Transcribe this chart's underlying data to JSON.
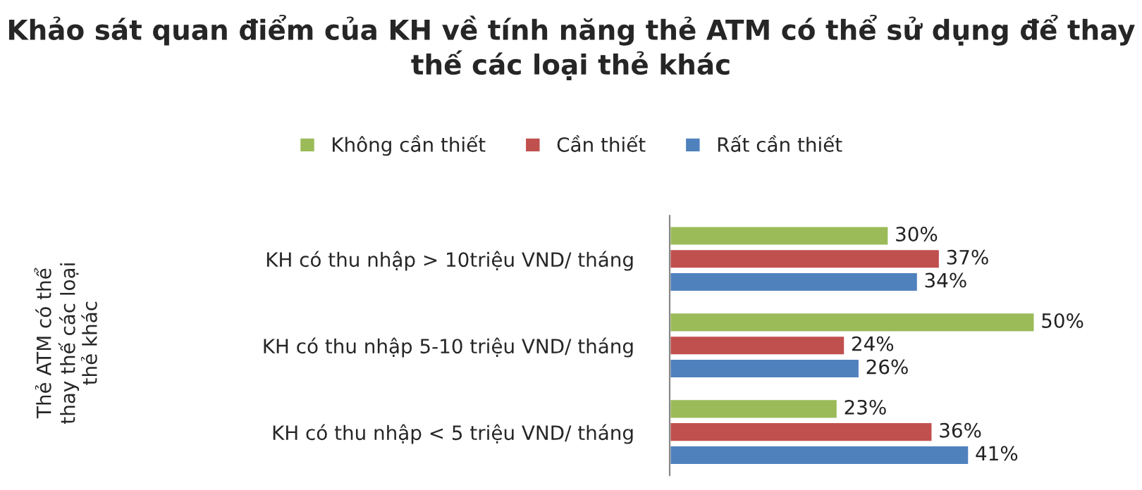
{
  "chart_data": {
    "type": "bar",
    "orientation": "horizontal",
    "title": "Khảo sát quan điểm của KH về tính năng thẻ ATM có thể sử dụng để thay thế các loại thẻ khác",
    "annotations": [
      "Thẻ ATM có thể\nthay thế các loại\nthẻ khác"
    ],
    "categories": [
      "KH có thu nhập > 10triệu VND/ tháng",
      "KH có thu nhập 5-10 triệu VND/ tháng",
      "KH có thu nhập < 5 triệu VND/ tháng"
    ],
    "series": [
      {
        "name": "Không cần thiết",
        "color": "#9bbb59",
        "values": [
          30,
          50,
          23
        ],
        "value_labels": [
          "30%",
          "50%",
          "23%"
        ]
      },
      {
        "name": "Cần thiết",
        "color": "#c0504d",
        "values": [
          37,
          24,
          36
        ],
        "value_labels": [
          "37%",
          "24%",
          "36%"
        ]
      },
      {
        "name": "Rất cần thiết",
        "color": "#4f81bd",
        "values": [
          34,
          26,
          41
        ],
        "value_labels": [
          "34%",
          "26%",
          "41%"
        ]
      }
    ],
    "legend": "top",
    "grid": false
  }
}
